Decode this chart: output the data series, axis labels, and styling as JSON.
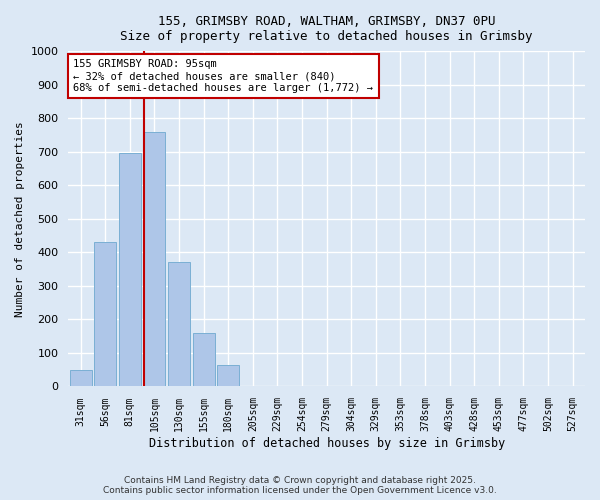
{
  "title_line1": "155, GRIMSBY ROAD, WALTHAM, GRIMSBY, DN37 0PU",
  "title_line2": "Size of property relative to detached houses in Grimsby",
  "xlabel": "Distribution of detached houses by size in Grimsby",
  "ylabel": "Number of detached properties",
  "categories": [
    "31sqm",
    "56sqm",
    "81sqm",
    "105sqm",
    "130sqm",
    "155sqm",
    "180sqm",
    "205sqm",
    "229sqm",
    "254sqm",
    "279sqm",
    "304sqm",
    "329sqm",
    "353sqm",
    "378sqm",
    "403sqm",
    "428sqm",
    "453sqm",
    "477sqm",
    "502sqm",
    "527sqm"
  ],
  "bar_color": "#aec6e8",
  "bar_edge_color": "#7aafd4",
  "vline_color": "#c00000",
  "annotation_title": "155 GRIMSBY ROAD: 95sqm",
  "annotation_line1": "← 32% of detached houses are smaller (840)",
  "annotation_line2": "68% of semi-detached houses are larger (1,772) →",
  "annotation_box_color": "#c00000",
  "ylim": [
    0,
    1000
  ],
  "yticks": [
    0,
    100,
    200,
    300,
    400,
    500,
    600,
    700,
    800,
    900,
    1000
  ],
  "background_color": "#dce8f5",
  "grid_color": "#ffffff",
  "footer_line1": "Contains HM Land Registry data © Crown copyright and database right 2025.",
  "footer_line2": "Contains public sector information licensed under the Open Government Licence v3.0.",
  "bar_counts": [
    50,
    430,
    695,
    760,
    370,
    160,
    65,
    0,
    0,
    0,
    0,
    0,
    0,
    0,
    0,
    0,
    0,
    0,
    0,
    0,
    0
  ]
}
